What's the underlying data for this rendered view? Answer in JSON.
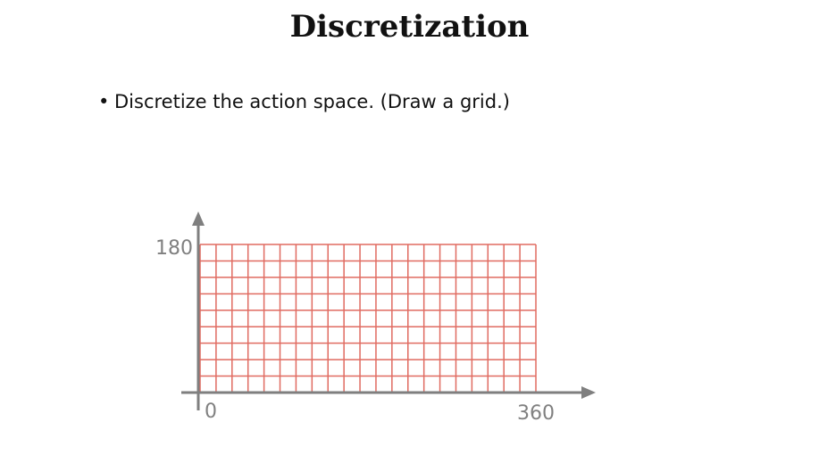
{
  "slide": {
    "title": "Discretization",
    "bullets": [
      "Discretize the action space. (Draw a grid.)"
    ]
  },
  "diagram": {
    "grid_columns": 21,
    "grid_rows": 9,
    "x_range": [
      0,
      360
    ],
    "y_range": [
      0,
      180
    ],
    "x_origin_label": "0",
    "x_max_label": "360",
    "y_max_label": "180",
    "grid_color": "#e06b61",
    "axis_color": "#7f7f7f"
  }
}
